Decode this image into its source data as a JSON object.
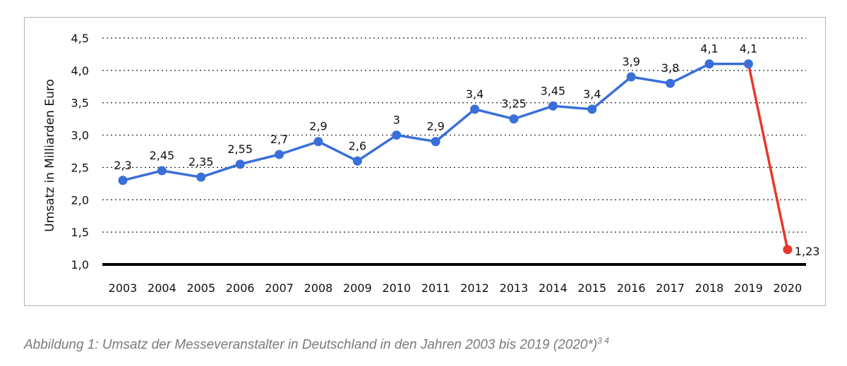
{
  "chart_data": {
    "type": "line",
    "ylabel": "Umsatz in Milliarden Euro",
    "xlabel": "",
    "ylim": [
      1.0,
      4.5
    ],
    "yticks": [
      "1,0",
      "1,5",
      "2,0",
      "2,5",
      "3,0",
      "3,5",
      "4,0",
      "4,5"
    ],
    "ytick_values": [
      1.0,
      1.5,
      2.0,
      2.5,
      3.0,
      3.5,
      4.0,
      4.5
    ],
    "grid": "horizontal dotted",
    "categories": [
      "2003",
      "2004",
      "2005",
      "2006",
      "2007",
      "2008",
      "2009",
      "2010",
      "2011",
      "2012",
      "2013",
      "2014",
      "2015",
      "2016",
      "2017",
      "2018",
      "2019",
      "2020"
    ],
    "series": [
      {
        "color": "#3a6fd8",
        "values": [
          2.3,
          2.45,
          2.35,
          2.55,
          2.7,
          2.9,
          2.6,
          3.0,
          2.9,
          3.4,
          3.25,
          3.45,
          3.4,
          3.9,
          3.8,
          4.1,
          4.1,
          null
        ],
        "labels": [
          "2,3",
          "2,45",
          "2,35",
          "2,55",
          "2,7",
          "2,9",
          "2,6",
          "3",
          "2,9",
          "3,4",
          "3,25",
          "3,45",
          "3,4",
          "3,9",
          "3,8",
          "4,1",
          "4,1",
          ""
        ]
      },
      {
        "color": "#e8382a",
        "values": [
          null,
          null,
          null,
          null,
          null,
          null,
          null,
          null,
          null,
          null,
          null,
          null,
          null,
          null,
          null,
          null,
          4.1,
          1.23
        ],
        "labels": [
          "",
          "",
          "",
          "",
          "",
          "",
          "",
          "",
          "",
          "",
          "",
          "",
          "",
          "",
          "",
          "",
          "",
          "1,23"
        ]
      }
    ]
  },
  "caption": {
    "text": "Abbildung 1: Umsatz der Messeveranstalter in Deutschland in den Jahren 2003 bis 2019 (2020*)",
    "superscript": "3  4"
  }
}
